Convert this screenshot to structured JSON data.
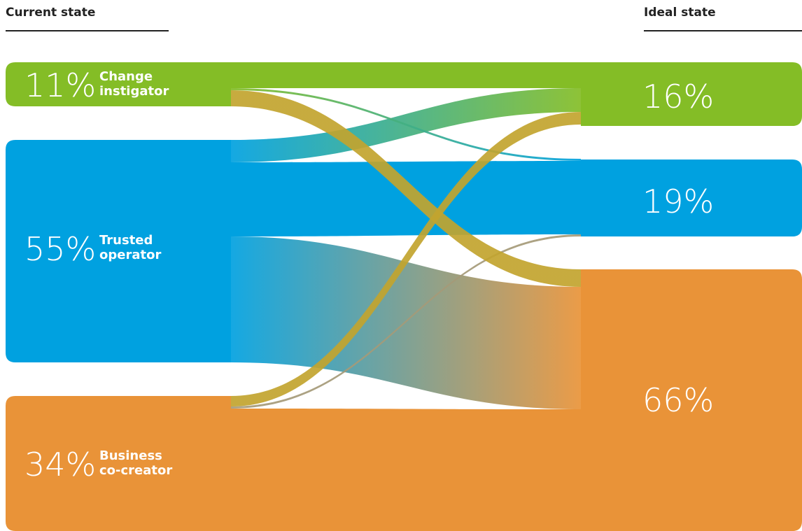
{
  "headers": {
    "current": "Current state",
    "ideal": "Ideal state"
  },
  "colors": {
    "change": "#84BD26",
    "trusted": "#00A1E0",
    "business": "#E99338",
    "flow_gold": "#C2A42E",
    "flow_gray": "#A59A78"
  },
  "chart_data": {
    "type": "sankey",
    "left_nodes": [
      {
        "id": "change",
        "pct": "11%",
        "value": 11,
        "label_line1": "Change",
        "label_line2": "instigator"
      },
      {
        "id": "trusted",
        "pct": "55%",
        "value": 55,
        "label_line1": "Trusted",
        "label_line2": "operator"
      },
      {
        "id": "business",
        "pct": "34%",
        "value": 34,
        "label_line1": "Business",
        "label_line2": "co-creator"
      }
    ],
    "right_nodes": [
      {
        "id": "change",
        "pct": "16%",
        "value": 16
      },
      {
        "id": "trusted",
        "pct": "19%",
        "value": 19
      },
      {
        "id": "business",
        "pct": "66%",
        "value": 66
      }
    ],
    "flows": [
      {
        "from": "change",
        "to": "change",
        "value": 6
      },
      {
        "from": "change",
        "to": "trusted",
        "value": 0.5
      },
      {
        "from": "change",
        "to": "business",
        "value": 4.5
      },
      {
        "from": "trusted",
        "to": "change",
        "value": 5.5
      },
      {
        "from": "trusted",
        "to": "trusted",
        "value": 18
      },
      {
        "from": "trusted",
        "to": "business",
        "value": 31.5
      },
      {
        "from": "business",
        "to": "change",
        "value": 4.5
      },
      {
        "from": "business",
        "to": "trusted",
        "value": 0.5
      },
      {
        "from": "business",
        "to": "business",
        "value": 29
      }
    ]
  }
}
